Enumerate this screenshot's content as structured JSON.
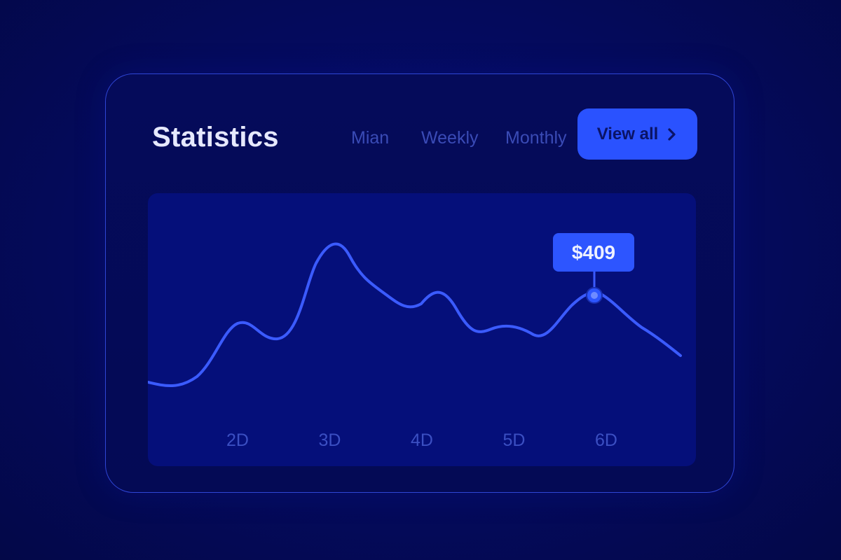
{
  "header": {
    "title": "Statistics",
    "tabs": [
      {
        "label": "Mian"
      },
      {
        "label": "Weekly"
      },
      {
        "label": "Monthly"
      }
    ],
    "view_all": {
      "label": "View all",
      "icon": "chevron-right-icon"
    }
  },
  "chart_data": {
    "type": "line",
    "categories": [
      "2D",
      "3D",
      "4D",
      "5D",
      "6D"
    ],
    "highlight": {
      "category": "6D",
      "label": "$409"
    },
    "grid": false,
    "title": "",
    "xlabel": "",
    "ylabel": ""
  },
  "colors": {
    "background": "#040a5c",
    "card": "#050b5a",
    "plot_area": "#050f7a",
    "accent": "#2a52ff",
    "line": "#3b5bff",
    "muted_text": "#3a4bb6"
  }
}
